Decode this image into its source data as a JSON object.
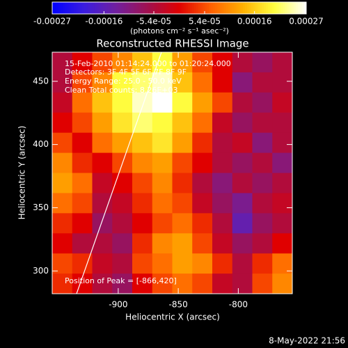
{
  "chart_data": {
    "type": "heatmap",
    "title": "Reconstructed RHESSI Image",
    "xlabel": "Heliocentric X (arcsec)",
    "ylabel": "Heliocentric Y (arcsec)",
    "colorbar_label": "(photons cm⁻² s⁻¹ asec⁻²)",
    "annotations": [
      "15-Feb-2010 01:14:24.000 to 01:20:24.000",
      "Detectors: 3F 4F 5F 6F 7F 8F 9F",
      "Energy Range: 25.0 - 50.0 keV",
      "Clean     Total counts: 8.26E+03",
      "Position of Peak = [-866,420]"
    ],
    "footer": "8-May-2022 21:56",
    "xlim": [
      -955,
      -755
    ],
    "xticks": [
      -900,
      -850,
      -800
    ],
    "ylim": [
      282,
      473
    ],
    "yticks": [
      300,
      350,
      400,
      450
    ],
    "zlim": [
      -0.00027,
      0.00027
    ],
    "zticks": [
      -0.00027,
      -0.00016,
      {
        "value": -5.4e-05,
        "label": "-5.4e-05"
      },
      {
        "value": 5.4e-05,
        "label": "5.4e-05"
      },
      0.00016,
      0.00027
    ],
    "colormap": [
      "#0000ff",
      "#3a1ce0",
      "#7020a0",
      "#a01050",
      "#e00000",
      "#ff6000",
      "#ffb000",
      "#ffff40",
      "#ffffff"
    ],
    "z": [
      [
        -5e-05,
        0,
        5e-05,
        0.0001,
        0.00015,
        0.0002,
        0.00012,
        5e-05,
        0,
        -5e-05,
        -8e-05,
        -5e-05
      ],
      [
        -5e-05,
        5e-05,
        0.0001,
        0.0002,
        0.00022,
        0.00025,
        0.00015,
        8e-05,
        0,
        -0.0001,
        -5e-05,
        -5e-05
      ],
      [
        -3e-05,
        8e-05,
        0.00015,
        0.0002,
        0.00025,
        0.00027,
        0.0002,
        0.00012,
        5e-05,
        -5e-05,
        -8e-05,
        -3e-05
      ],
      [
        0,
        5e-05,
        0.00012,
        0.00018,
        0.00022,
        0.0002,
        0.00015,
        8e-05,
        -3e-05,
        -8e-05,
        -5e-05,
        -5e-05
      ],
      [
        5e-05,
        0,
        8e-05,
        0.00012,
        0.00015,
        0.00018,
        0.00012,
        3e-05,
        -5e-05,
        -3e-05,
        -0.0001,
        -5e-05
      ],
      [
        0.0001,
        3e-05,
        0,
        5e-05,
        0.0001,
        0.00012,
        5e-05,
        0,
        -5e-05,
        -8e-05,
        -5e-05,
        -0.0001
      ],
      [
        0.00012,
        8e-05,
        -3e-05,
        0,
        5e-05,
        0.0001,
        3e-05,
        -5e-05,
        -0.0001,
        -5e-05,
        -8e-05,
        -5e-05
      ],
      [
        8e-05,
        5e-05,
        -5e-05,
        -3e-05,
        3e-05,
        8e-05,
        5e-05,
        -3e-05,
        -8e-05,
        -0.00012,
        -5e-05,
        -3e-05
      ],
      [
        3e-05,
        0,
        -8e-05,
        -5e-05,
        0,
        5e-05,
        8e-05,
        3e-05,
        -5e-05,
        -0.00015,
        -8e-05,
        -5e-05
      ],
      [
        0,
        -5e-05,
        -5e-05,
        -8e-05,
        3e-05,
        0.0001,
        0.00012,
        5e-05,
        -3e-05,
        -8e-05,
        -5e-05,
        0
      ],
      [
        5e-05,
        3e-05,
        -3e-05,
        -5e-05,
        5e-05,
        8e-05,
        0.00012,
        0.0001,
        3e-05,
        -5e-05,
        3e-05,
        8e-05
      ],
      [
        3e-05,
        0,
        -5e-05,
        -8e-05,
        0,
        5e-05,
        8e-05,
        5e-05,
        -3e-05,
        -5e-05,
        5e-05,
        0.0001
      ]
    ]
  }
}
